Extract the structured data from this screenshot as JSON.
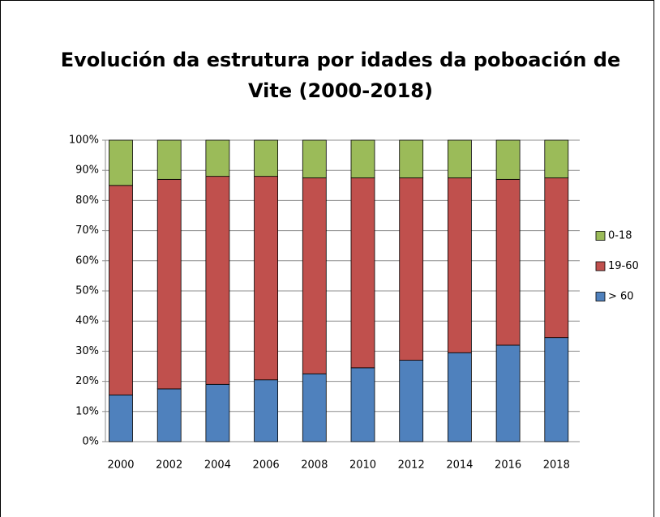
{
  "chart_data": {
    "type": "stacked_bar",
    "title": "Evolución da estrutura por idades da poboación de Vite (2000-2018)",
    "categories": [
      "2000",
      "2002",
      "2004",
      "2006",
      "2008",
      "2010",
      "2012",
      "2014",
      "2016",
      "2018"
    ],
    "series": [
      {
        "name": "> 60",
        "color": "#4f81bd",
        "values": [
          15.5,
          17.5,
          19,
          20.5,
          22.5,
          24.5,
          27,
          29.5,
          32,
          34.5
        ]
      },
      {
        "name": "19-60",
        "color": "#c0504d",
        "values": [
          69.5,
          69.5,
          69,
          67.5,
          65,
          63,
          60.5,
          58,
          55,
          53
        ]
      },
      {
        "name": "0-18",
        "color": "#9bbb59",
        "values": [
          15,
          13,
          12,
          12,
          12.5,
          12.5,
          12.5,
          12.5,
          13,
          12.5
        ]
      }
    ],
    "ylim": [
      0,
      100
    ],
    "yticks": [
      {
        "value": 0,
        "label": "0%"
      },
      {
        "value": 10,
        "label": "10%"
      },
      {
        "value": 20,
        "label": "20%"
      },
      {
        "value": 30,
        "label": "30%"
      },
      {
        "value": 40,
        "label": "40%"
      },
      {
        "value": 50,
        "label": "50%"
      },
      {
        "value": 60,
        "label": "60%"
      },
      {
        "value": 70,
        "label": "70%"
      },
      {
        "value": 80,
        "label": "80%"
      },
      {
        "value": 90,
        "label": "90%"
      },
      {
        "value": 100,
        "label": "100%"
      }
    ],
    "grid": true,
    "legend": "right"
  }
}
